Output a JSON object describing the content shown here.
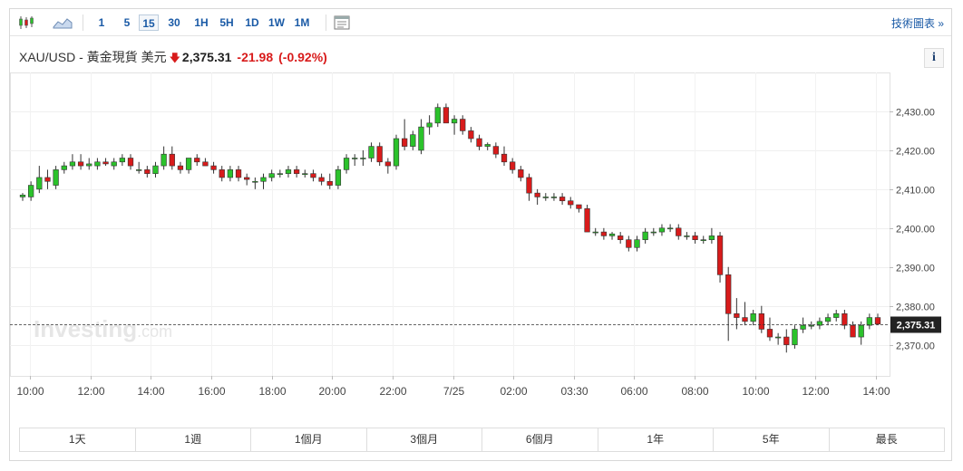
{
  "toolbar": {
    "timeframes": [
      "1",
      "5",
      "15",
      "30",
      "1H",
      "5H",
      "1D",
      "1W",
      "1M"
    ],
    "active_timeframe": "15",
    "tech_chart_label": "技術圖表 »"
  },
  "quote": {
    "symbol": "XAU/USD - 黃金現貨 美元",
    "price": "2,375.31",
    "change": "-21.98",
    "change_pct": "(-0.92%)",
    "info_label": "i"
  },
  "watermark": {
    "brand": "Investing",
    "suffix": ".com"
  },
  "ranges": [
    "1天",
    "1週",
    "1個月",
    "3個月",
    "6個月",
    "1年",
    "5年",
    "最長"
  ],
  "colors": {
    "up": "#2bc22b",
    "down": "#d81b1b",
    "link": "#1a5aa6"
  },
  "chart_data": {
    "type": "candlestick",
    "y_ticks": [
      2370,
      2380,
      2390,
      2400,
      2410,
      2420,
      2430
    ],
    "y_tick_labels": [
      "2,370.00",
      "2,380.00",
      "2,390.00",
      "2,400.00",
      "2,410.00",
      "2,420.00",
      "2,430.00"
    ],
    "ylim": [
      2362,
      2440
    ],
    "x_tick_labels": [
      "10:00",
      "12:00",
      "14:00",
      "16:00",
      "18:00",
      "20:00",
      "22:00",
      "7/25",
      "02:00",
      "03:30",
      "06:00",
      "08:00",
      "10:00",
      "12:00",
      "14:00"
    ],
    "last_price": 2375.31,
    "last_price_label": "2,375.31",
    "candles": [
      [
        2408,
        2409,
        2407,
        2408.5
      ],
      [
        2408,
        2412,
        2407,
        2411
      ],
      [
        2410,
        2416,
        2409,
        2413
      ],
      [
        2413,
        2415,
        2410,
        2412
      ],
      [
        2411,
        2416,
        2410,
        2415
      ],
      [
        2415,
        2417,
        2414,
        2416
      ],
      [
        2416,
        2419,
        2415,
        2417
      ],
      [
        2417,
        2419,
        2415,
        2416
      ],
      [
        2416,
        2418,
        2415,
        2416.5
      ],
      [
        2416,
        2418,
        2415,
        2417
      ],
      [
        2417,
        2418,
        2416,
        2416.5
      ],
      [
        2416,
        2418,
        2415,
        2417
      ],
      [
        2417,
        2419,
        2416,
        2418
      ],
      [
        2418,
        2419,
        2415,
        2416
      ],
      [
        2415,
        2417,
        2414,
        2415
      ],
      [
        2415,
        2416,
        2413,
        2414
      ],
      [
        2414,
        2417,
        2413,
        2416
      ],
      [
        2416,
        2421,
        2415,
        2419
      ],
      [
        2419,
        2421,
        2415,
        2416
      ],
      [
        2416,
        2417,
        2414,
        2415
      ],
      [
        2415,
        2418,
        2414,
        2418
      ],
      [
        2418,
        2419,
        2416,
        2417
      ],
      [
        2417,
        2418,
        2416,
        2416
      ],
      [
        2416,
        2417,
        2414,
        2415
      ],
      [
        2415,
        2416,
        2412,
        2413
      ],
      [
        2413,
        2416,
        2412,
        2415
      ],
      [
        2415,
        2416,
        2412,
        2413
      ],
      [
        2413,
        2414,
        2411,
        2412.5
      ],
      [
        2412,
        2413,
        2410,
        2412
      ],
      [
        2412,
        2414,
        2410,
        2413
      ],
      [
        2413,
        2415,
        2412,
        2414
      ],
      [
        2414,
        2415,
        2413,
        2414
      ],
      [
        2414,
        2416,
        2413,
        2415
      ],
      [
        2415,
        2416,
        2413,
        2414
      ],
      [
        2414,
        2415,
        2413,
        2414
      ],
      [
        2414,
        2415,
        2412,
        2413
      ],
      [
        2413,
        2414,
        2411,
        2412
      ],
      [
        2412,
        2414,
        2410,
        2411
      ],
      [
        2411,
        2416,
        2410,
        2415
      ],
      [
        2415,
        2419,
        2414,
        2418
      ],
      [
        2418,
        2419,
        2416,
        2418
      ],
      [
        2418,
        2420,
        2416,
        2418
      ],
      [
        2418,
        2422,
        2417,
        2421
      ],
      [
        2421,
        2422,
        2416,
        2417
      ],
      [
        2417,
        2418,
        2414,
        2416
      ],
      [
        2416,
        2424,
        2415,
        2423
      ],
      [
        2423,
        2428,
        2420,
        2421
      ],
      [
        2421,
        2425,
        2420,
        2424
      ],
      [
        2420,
        2428,
        2419,
        2426
      ],
      [
        2426,
        2429,
        2424,
        2427
      ],
      [
        2427,
        2432,
        2426,
        2431
      ],
      [
        2431,
        2432,
        2427,
        2427
      ],
      [
        2427,
        2429,
        2424,
        2428
      ],
      [
        2428,
        2429,
        2424,
        2425
      ],
      [
        2425,
        2426,
        2422,
        2423
      ],
      [
        2423,
        2424,
        2420,
        2421
      ],
      [
        2421,
        2422,
        2420,
        2421.5
      ],
      [
        2421,
        2422,
        2418,
        2419
      ],
      [
        2419,
        2421,
        2416,
        2417
      ],
      [
        2417,
        2418,
        2414,
        2415
      ],
      [
        2415,
        2416,
        2412,
        2413
      ],
      [
        2413,
        2414,
        2407,
        2409
      ],
      [
        2409,
        2410,
        2406,
        2408
      ],
      [
        2408,
        2409,
        2407,
        2408
      ],
      [
        2408,
        2409,
        2407,
        2408
      ],
      [
        2408,
        2409,
        2406,
        2407
      ],
      [
        2407,
        2408,
        2405,
        2406
      ],
      [
        2406,
        2406,
        2404,
        2405
      ],
      [
        2405,
        2406,
        2399,
        2399
      ],
      [
        2399,
        2400,
        2398,
        2399
      ],
      [
        2399,
        2400,
        2397,
        2398
      ],
      [
        2398,
        2399,
        2397,
        2398.5
      ],
      [
        2398,
        2399,
        2396,
        2397
      ],
      [
        2397,
        2398,
        2394,
        2395
      ],
      [
        2395,
        2398,
        2394,
        2397
      ],
      [
        2397,
        2400,
        2396,
        2399
      ],
      [
        2399,
        2400,
        2398,
        2399
      ],
      [
        2399,
        2401,
        2398,
        2400
      ],
      [
        2400,
        2401,
        2399,
        2400
      ],
      [
        2400,
        2401,
        2397,
        2398
      ],
      [
        2398,
        2399,
        2397,
        2398
      ],
      [
        2398,
        2399,
        2396,
        2397
      ],
      [
        2397,
        2398,
        2396,
        2397
      ],
      [
        2397,
        2400,
        2396,
        2398
      ],
      [
        2398,
        2399,
        2386,
        2388
      ],
      [
        2388,
        2390,
        2371,
        2378
      ],
      [
        2378,
        2382,
        2374,
        2377
      ],
      [
        2377,
        2381,
        2375,
        2376
      ],
      [
        2376,
        2379,
        2375,
        2378
      ],
      [
        2378,
        2380,
        2373,
        2374
      ],
      [
        2374,
        2377,
        2371,
        2372
      ],
      [
        2372,
        2373,
        2370,
        2372
      ],
      [
        2372,
        2374,
        2368,
        2370
      ],
      [
        2370,
        2375,
        2369,
        2374
      ],
      [
        2374,
        2377,
        2373,
        2375
      ],
      [
        2375,
        2376,
        2374,
        2375
      ],
      [
        2375,
        2377,
        2374,
        2376
      ],
      [
        2376,
        2378,
        2375,
        2377
      ],
      [
        2377,
        2379,
        2376,
        2378
      ],
      [
        2378,
        2379,
        2374,
        2375
      ],
      [
        2375,
        2376,
        2372,
        2372
      ],
      [
        2372,
        2376,
        2370,
        2375
      ],
      [
        2375,
        2378,
        2374,
        2377
      ],
      [
        2377,
        2378,
        2375,
        2375.31
      ]
    ]
  }
}
